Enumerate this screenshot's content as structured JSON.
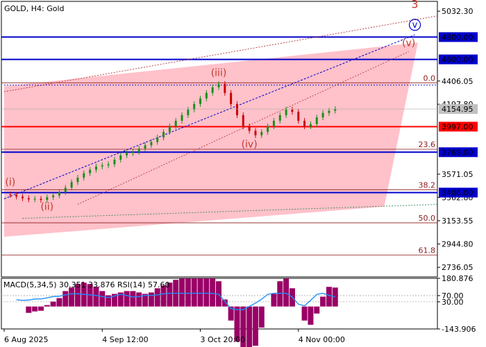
{
  "header": {
    "title": "GOLD, H4:  Gold"
  },
  "colors": {
    "channel_fill": "#ffb6c1",
    "blue_level": "#0000cc",
    "red_level": "#ff0000",
    "wave_label": "#c0392b",
    "candle_up": "#1a8f1a",
    "candle_down": "#cc0000",
    "macd_hist": "#990066",
    "rsi_line": "#1e90ff",
    "price_tag_bg": "#c0c0c0"
  },
  "chart_data": [
    {
      "type": "candlestick",
      "symbol": "GOLD",
      "timeframe": "H4",
      "ylim": [
        2650,
        5120
      ],
      "y_ticks": [
        "5032.30",
        "4406.05",
        "4197.80",
        "3571.05",
        "3362.80",
        "3153.55",
        "2944.80",
        "2736.05"
      ],
      "x_ticks": [
        "6 Aug 2025",
        "4 Sep 12:00",
        "3 Oct 20:00",
        "4 Nov 00:00"
      ],
      "current_price": "4154.95",
      "price_series": [
        3390,
        3385,
        3370,
        3355,
        3345,
        3350,
        3340,
        3365,
        3380,
        3410,
        3450,
        3500,
        3540,
        3580,
        3610,
        3640,
        3650,
        3660,
        3700,
        3740,
        3760,
        3770,
        3800,
        3830,
        3860,
        3900,
        3950,
        4000,
        4050,
        4100,
        4150,
        4200,
        4250,
        4300,
        4350,
        4380,
        4300,
        4200,
        4100,
        4000,
        3960,
        3920,
        3950,
        4000,
        4050,
        4100,
        4150,
        4130,
        4050,
        4000,
        4020,
        4080,
        4120,
        4140,
        4155
      ],
      "horizontal_levels": [
        {
          "label": "4800.00",
          "value": 4800,
          "color": "blue"
        },
        {
          "label": "4600.00",
          "value": 4600,
          "color": "blue"
        },
        {
          "label": "3997.00",
          "value": 3997,
          "color": "red"
        },
        {
          "label": "3768.00",
          "value": 3768,
          "color": "blue"
        },
        {
          "label": "3406.00",
          "value": 3406,
          "color": "blue"
        }
      ],
      "fibonacci_levels": [
        {
          "label": "0.0",
          "value": 4390
        },
        {
          "label": "23.6",
          "value": 3795
        },
        {
          "label": "38.2",
          "value": 3432
        },
        {
          "label": "50.0",
          "value": 3135
        },
        {
          "label": "61.8",
          "value": 2845
        }
      ],
      "wave_labels": [
        {
          "text": "(i)",
          "x_index": 1,
          "price": 3470
        },
        {
          "text": "(ii)",
          "x_index": 7,
          "price": 3250
        },
        {
          "text": "(iii)",
          "x_index": 35,
          "price": 4450
        },
        {
          "text": "(iv)",
          "x_index": 40,
          "price": 3810
        },
        {
          "text": "(v)",
          "x_index": 66,
          "price": 4720
        },
        {
          "text": "v",
          "x_index": 67,
          "price": 4885
        },
        {
          "text": "3",
          "x_index": 67,
          "price": 5060
        }
      ]
    },
    {
      "type": "line",
      "panel": "indicator",
      "title": "MACD(5,34,5) 30.351 33.876 RSI(14) 57.60",
      "macd": {
        "main": 30.351,
        "signal": 33.876
      },
      "rsi": 57.6,
      "y_ticks": [
        "180.876",
        "70.00",
        "30.00",
        "-143.906"
      ]
    }
  ]
}
